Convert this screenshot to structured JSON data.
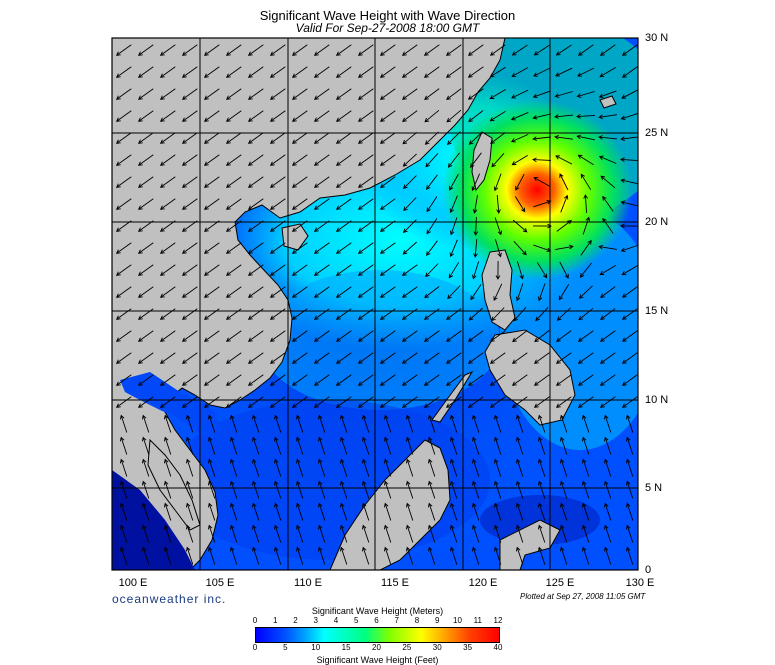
{
  "header": {
    "title": "Significant Wave Height with Wave Direction",
    "subtitle": "Valid For Sep-27-2008 18:00 GMT"
  },
  "axes": {
    "latitudes": [
      "30 N",
      "25 N",
      "20 N",
      "15 N",
      "10 N",
      "5 N",
      "0"
    ],
    "longitudes": [
      "100 E",
      "105 E",
      "110 E",
      "115 E",
      "120 E",
      "125 E",
      "130 E"
    ]
  },
  "footer": {
    "brand": "oceanweather inc.",
    "plotted": "Plotted at Sep 27, 2008 11:05 GMT"
  },
  "colorbar": {
    "title_meters": "Significant Wave Height (Meters)",
    "title_feet": "Significant Wave Height (Feet)",
    "meters_ticks": [
      "0",
      "1",
      "2",
      "3",
      "4",
      "5",
      "6",
      "7",
      "8",
      "9",
      "10",
      "11",
      "12"
    ],
    "feet_ticks": [
      "0",
      "5",
      "10",
      "15",
      "20",
      "25",
      "30",
      "35",
      "40"
    ]
  },
  "colors": {
    "land": "#c0c0c0",
    "ocean_low": "#0000ff",
    "ocean_mid": "#00ffff",
    "peak": "#ff0000"
  },
  "features": {
    "storm_center": "typhoon peak near 22N 124E"
  }
}
